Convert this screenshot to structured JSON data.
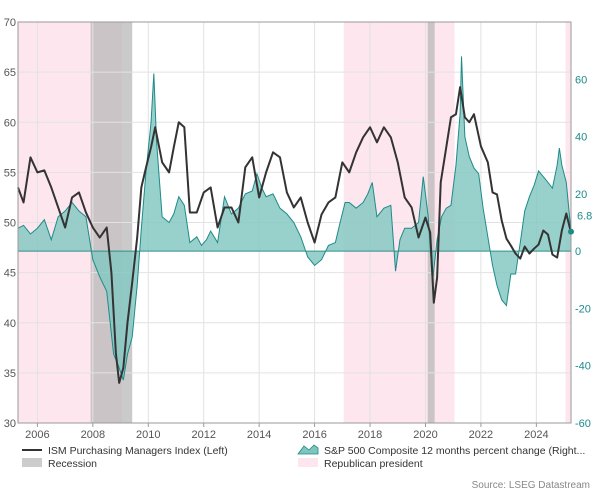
{
  "chart_data": {
    "type": "line",
    "x_range": [
      2005.3,
      2025.25
    ],
    "x_ticks": [
      "2006",
      "2008",
      "2010",
      "2012",
      "2014",
      "2016",
      "2018",
      "2020",
      "2022",
      "2024"
    ],
    "left_axis": {
      "ylim": [
        30,
        70
      ],
      "ticks": [
        "30",
        "35",
        "40",
        "45",
        "50",
        "55",
        "60",
        "65",
        "70"
      ]
    },
    "right_axis": {
      "ylim": [
        -60,
        80
      ],
      "ticks": [
        "-60",
        "-40",
        "-20",
        "0",
        "20",
        "40",
        "60"
      ]
    },
    "grid": true,
    "recessions": [
      [
        2007.92,
        2009.42
      ],
      [
        2020.08,
        2020.33
      ]
    ],
    "republican_presidents": [
      [
        2005.3,
        2009.05
      ],
      [
        2017.05,
        2021.05
      ],
      [
        2025.05,
        2025.25
      ]
    ],
    "series": [
      {
        "name": "ISM Purchasing Managers Index (Left)",
        "axis": "left",
        "color": "#333333",
        "points": [
          [
            2005.3,
            53.5
          ],
          [
            2005.5,
            52.0
          ],
          [
            2005.75,
            56.5
          ],
          [
            2006.0,
            55.0
          ],
          [
            2006.25,
            55.2
          ],
          [
            2006.5,
            53.5
          ],
          [
            2006.75,
            51.5
          ],
          [
            2007.0,
            49.5
          ],
          [
            2007.25,
            52.5
          ],
          [
            2007.5,
            53.0
          ],
          [
            2007.75,
            51.0
          ],
          [
            2008.0,
            49.5
          ],
          [
            2008.25,
            48.5
          ],
          [
            2008.5,
            49.5
          ],
          [
            2008.67,
            45.0
          ],
          [
            2008.83,
            37.0
          ],
          [
            2008.95,
            34.0
          ],
          [
            2009.1,
            35.5
          ],
          [
            2009.25,
            40.0
          ],
          [
            2009.42,
            44.0
          ],
          [
            2009.6,
            48.5
          ],
          [
            2009.75,
            53.5
          ],
          [
            2009.92,
            55.5
          ],
          [
            2010.1,
            57.5
          ],
          [
            2010.25,
            59.5
          ],
          [
            2010.5,
            56.0
          ],
          [
            2010.75,
            55.0
          ],
          [
            2010.92,
            57.5
          ],
          [
            2011.1,
            60.0
          ],
          [
            2011.3,
            59.5
          ],
          [
            2011.5,
            51.0
          ],
          [
            2011.75,
            51.0
          ],
          [
            2012.0,
            53.0
          ],
          [
            2012.25,
            53.5
          ],
          [
            2012.5,
            49.5
          ],
          [
            2012.75,
            51.5
          ],
          [
            2013.0,
            51.5
          ],
          [
            2013.25,
            50.0
          ],
          [
            2013.5,
            55.5
          ],
          [
            2013.75,
            56.5
          ],
          [
            2014.0,
            52.5
          ],
          [
            2014.25,
            55.0
          ],
          [
            2014.5,
            57.0
          ],
          [
            2014.75,
            56.5
          ],
          [
            2015.0,
            53.0
          ],
          [
            2015.25,
            51.5
          ],
          [
            2015.5,
            52.5
          ],
          [
            2015.75,
            50.0
          ],
          [
            2016.0,
            48.0
          ],
          [
            2016.25,
            50.8
          ],
          [
            2016.5,
            52.0
          ],
          [
            2016.75,
            52.5
          ],
          [
            2017.0,
            56.0
          ],
          [
            2017.25,
            55.0
          ],
          [
            2017.5,
            57.0
          ],
          [
            2017.75,
            58.5
          ],
          [
            2018.0,
            59.5
          ],
          [
            2018.25,
            58.0
          ],
          [
            2018.5,
            59.5
          ],
          [
            2018.75,
            58.5
          ],
          [
            2019.0,
            56.0
          ],
          [
            2019.25,
            52.5
          ],
          [
            2019.5,
            51.5
          ],
          [
            2019.75,
            48.5
          ],
          [
            2020.0,
            50.5
          ],
          [
            2020.17,
            49.0
          ],
          [
            2020.3,
            42.0
          ],
          [
            2020.42,
            44.5
          ],
          [
            2020.55,
            54.0
          ],
          [
            2020.75,
            57.5
          ],
          [
            2020.92,
            60.5
          ],
          [
            2021.1,
            60.8
          ],
          [
            2021.25,
            63.5
          ],
          [
            2021.42,
            60.5
          ],
          [
            2021.58,
            60.0
          ],
          [
            2021.75,
            60.8
          ],
          [
            2022.0,
            57.6
          ],
          [
            2022.25,
            56.0
          ],
          [
            2022.42,
            53.0
          ],
          [
            2022.58,
            52.8
          ],
          [
            2022.75,
            50.2
          ],
          [
            2022.92,
            48.4
          ],
          [
            2023.08,
            47.7
          ],
          [
            2023.25,
            46.9
          ],
          [
            2023.42,
            46.4
          ],
          [
            2023.58,
            47.6
          ],
          [
            2023.75,
            46.9
          ],
          [
            2023.92,
            47.4
          ],
          [
            2024.08,
            47.8
          ],
          [
            2024.25,
            49.2
          ],
          [
            2024.42,
            48.8
          ],
          [
            2024.58,
            46.8
          ],
          [
            2024.75,
            46.5
          ],
          [
            2024.92,
            49.2
          ],
          [
            2025.08,
            50.9
          ],
          [
            2025.25,
            49.0
          ]
        ]
      },
      {
        "name": "S&P 500 Composite 12 months percent change (Right...",
        "axis": "right",
        "color": "#1f8a8a",
        "fill": "#86c8c2",
        "points": [
          [
            2005.3,
            8
          ],
          [
            2005.5,
            9
          ],
          [
            2005.75,
            6
          ],
          [
            2006.0,
            8
          ],
          [
            2006.25,
            11
          ],
          [
            2006.5,
            4
          ],
          [
            2006.75,
            12
          ],
          [
            2007.0,
            14
          ],
          [
            2007.25,
            17
          ],
          [
            2007.5,
            14
          ],
          [
            2007.75,
            12
          ],
          [
            2008.0,
            -3
          ],
          [
            2008.25,
            -9
          ],
          [
            2008.5,
            -14
          ],
          [
            2008.75,
            -36
          ],
          [
            2008.92,
            -40
          ],
          [
            2009.1,
            -45
          ],
          [
            2009.25,
            -36
          ],
          [
            2009.42,
            -30
          ],
          [
            2009.6,
            -12
          ],
          [
            2009.75,
            8
          ],
          [
            2009.92,
            28
          ],
          [
            2010.1,
            45
          ],
          [
            2010.2,
            62
          ],
          [
            2010.3,
            38
          ],
          [
            2010.5,
            12
          ],
          [
            2010.75,
            10
          ],
          [
            2010.92,
            13
          ],
          [
            2011.1,
            19
          ],
          [
            2011.3,
            16
          ],
          [
            2011.5,
            3
          ],
          [
            2011.75,
            5
          ],
          [
            2011.92,
            2
          ],
          [
            2012.1,
            4
          ],
          [
            2012.25,
            7
          ],
          [
            2012.5,
            3
          ],
          [
            2012.75,
            19
          ],
          [
            2013.0,
            13
          ],
          [
            2013.25,
            15
          ],
          [
            2013.5,
            20
          ],
          [
            2013.75,
            21
          ],
          [
            2013.92,
            27
          ],
          [
            2014.1,
            22
          ],
          [
            2014.25,
            19
          ],
          [
            2014.5,
            20
          ],
          [
            2014.75,
            15
          ],
          [
            2015.0,
            13
          ],
          [
            2015.25,
            10
          ],
          [
            2015.5,
            5
          ],
          [
            2015.75,
            -2
          ],
          [
            2016.0,
            -5
          ],
          [
            2016.25,
            -3
          ],
          [
            2016.5,
            2
          ],
          [
            2016.75,
            3
          ],
          [
            2016.92,
            10
          ],
          [
            2017.1,
            17
          ],
          [
            2017.25,
            17
          ],
          [
            2017.5,
            15
          ],
          [
            2017.75,
            17
          ],
          [
            2017.92,
            20
          ],
          [
            2018.08,
            24
          ],
          [
            2018.25,
            12
          ],
          [
            2018.5,
            15
          ],
          [
            2018.75,
            16
          ],
          [
            2018.92,
            -7
          ],
          [
            2019.08,
            4
          ],
          [
            2019.25,
            8
          ],
          [
            2019.5,
            8
          ],
          [
            2019.75,
            10
          ],
          [
            2019.92,
            26
          ],
          [
            2020.1,
            12
          ],
          [
            2020.25,
            -11
          ],
          [
            2020.42,
            4
          ],
          [
            2020.58,
            12
          ],
          [
            2020.75,
            15
          ],
          [
            2020.92,
            16
          ],
          [
            2021.1,
            30
          ],
          [
            2021.25,
            48
          ],
          [
            2021.3,
            68
          ],
          [
            2021.42,
            40
          ],
          [
            2021.58,
            33
          ],
          [
            2021.75,
            29
          ],
          [
            2021.92,
            27
          ],
          [
            2022.08,
            15
          ],
          [
            2022.25,
            5
          ],
          [
            2022.42,
            -5
          ],
          [
            2022.58,
            -12
          ],
          [
            2022.75,
            -17
          ],
          [
            2022.92,
            -19
          ],
          [
            2023.08,
            -8
          ],
          [
            2023.25,
            -8
          ],
          [
            2023.42,
            3
          ],
          [
            2023.58,
            14
          ],
          [
            2023.75,
            19
          ],
          [
            2023.92,
            23
          ],
          [
            2024.08,
            28
          ],
          [
            2024.25,
            26
          ],
          [
            2024.42,
            24
          ],
          [
            2024.58,
            22
          ],
          [
            2024.75,
            30
          ],
          [
            2024.83,
            36
          ],
          [
            2024.92,
            30
          ],
          [
            2025.08,
            24
          ],
          [
            2025.25,
            6.8
          ]
        ]
      }
    ],
    "last_value_label": "6.8",
    "legend": [
      {
        "label": "ISM Purchasing Managers Index (Left)",
        "swatch": "line",
        "color": "#333333"
      },
      {
        "label": "S&P 500 Composite 12 months percent change (Right...",
        "swatch": "area",
        "color": "#7fc4bd"
      },
      {
        "label": "Recession",
        "swatch": "block",
        "color": "#cccccc"
      },
      {
        "label": "Republican president",
        "swatch": "block",
        "color": "#fde6ee"
      }
    ],
    "legend_position": "bottom",
    "source": "Source: LSEG Datastream"
  },
  "colors": {
    "recession": "#b8b8b8",
    "republican": "#fde6ee",
    "grid": "#e2e2e2",
    "left_tick": "#555555",
    "right_tick": "#1f8a8a"
  }
}
